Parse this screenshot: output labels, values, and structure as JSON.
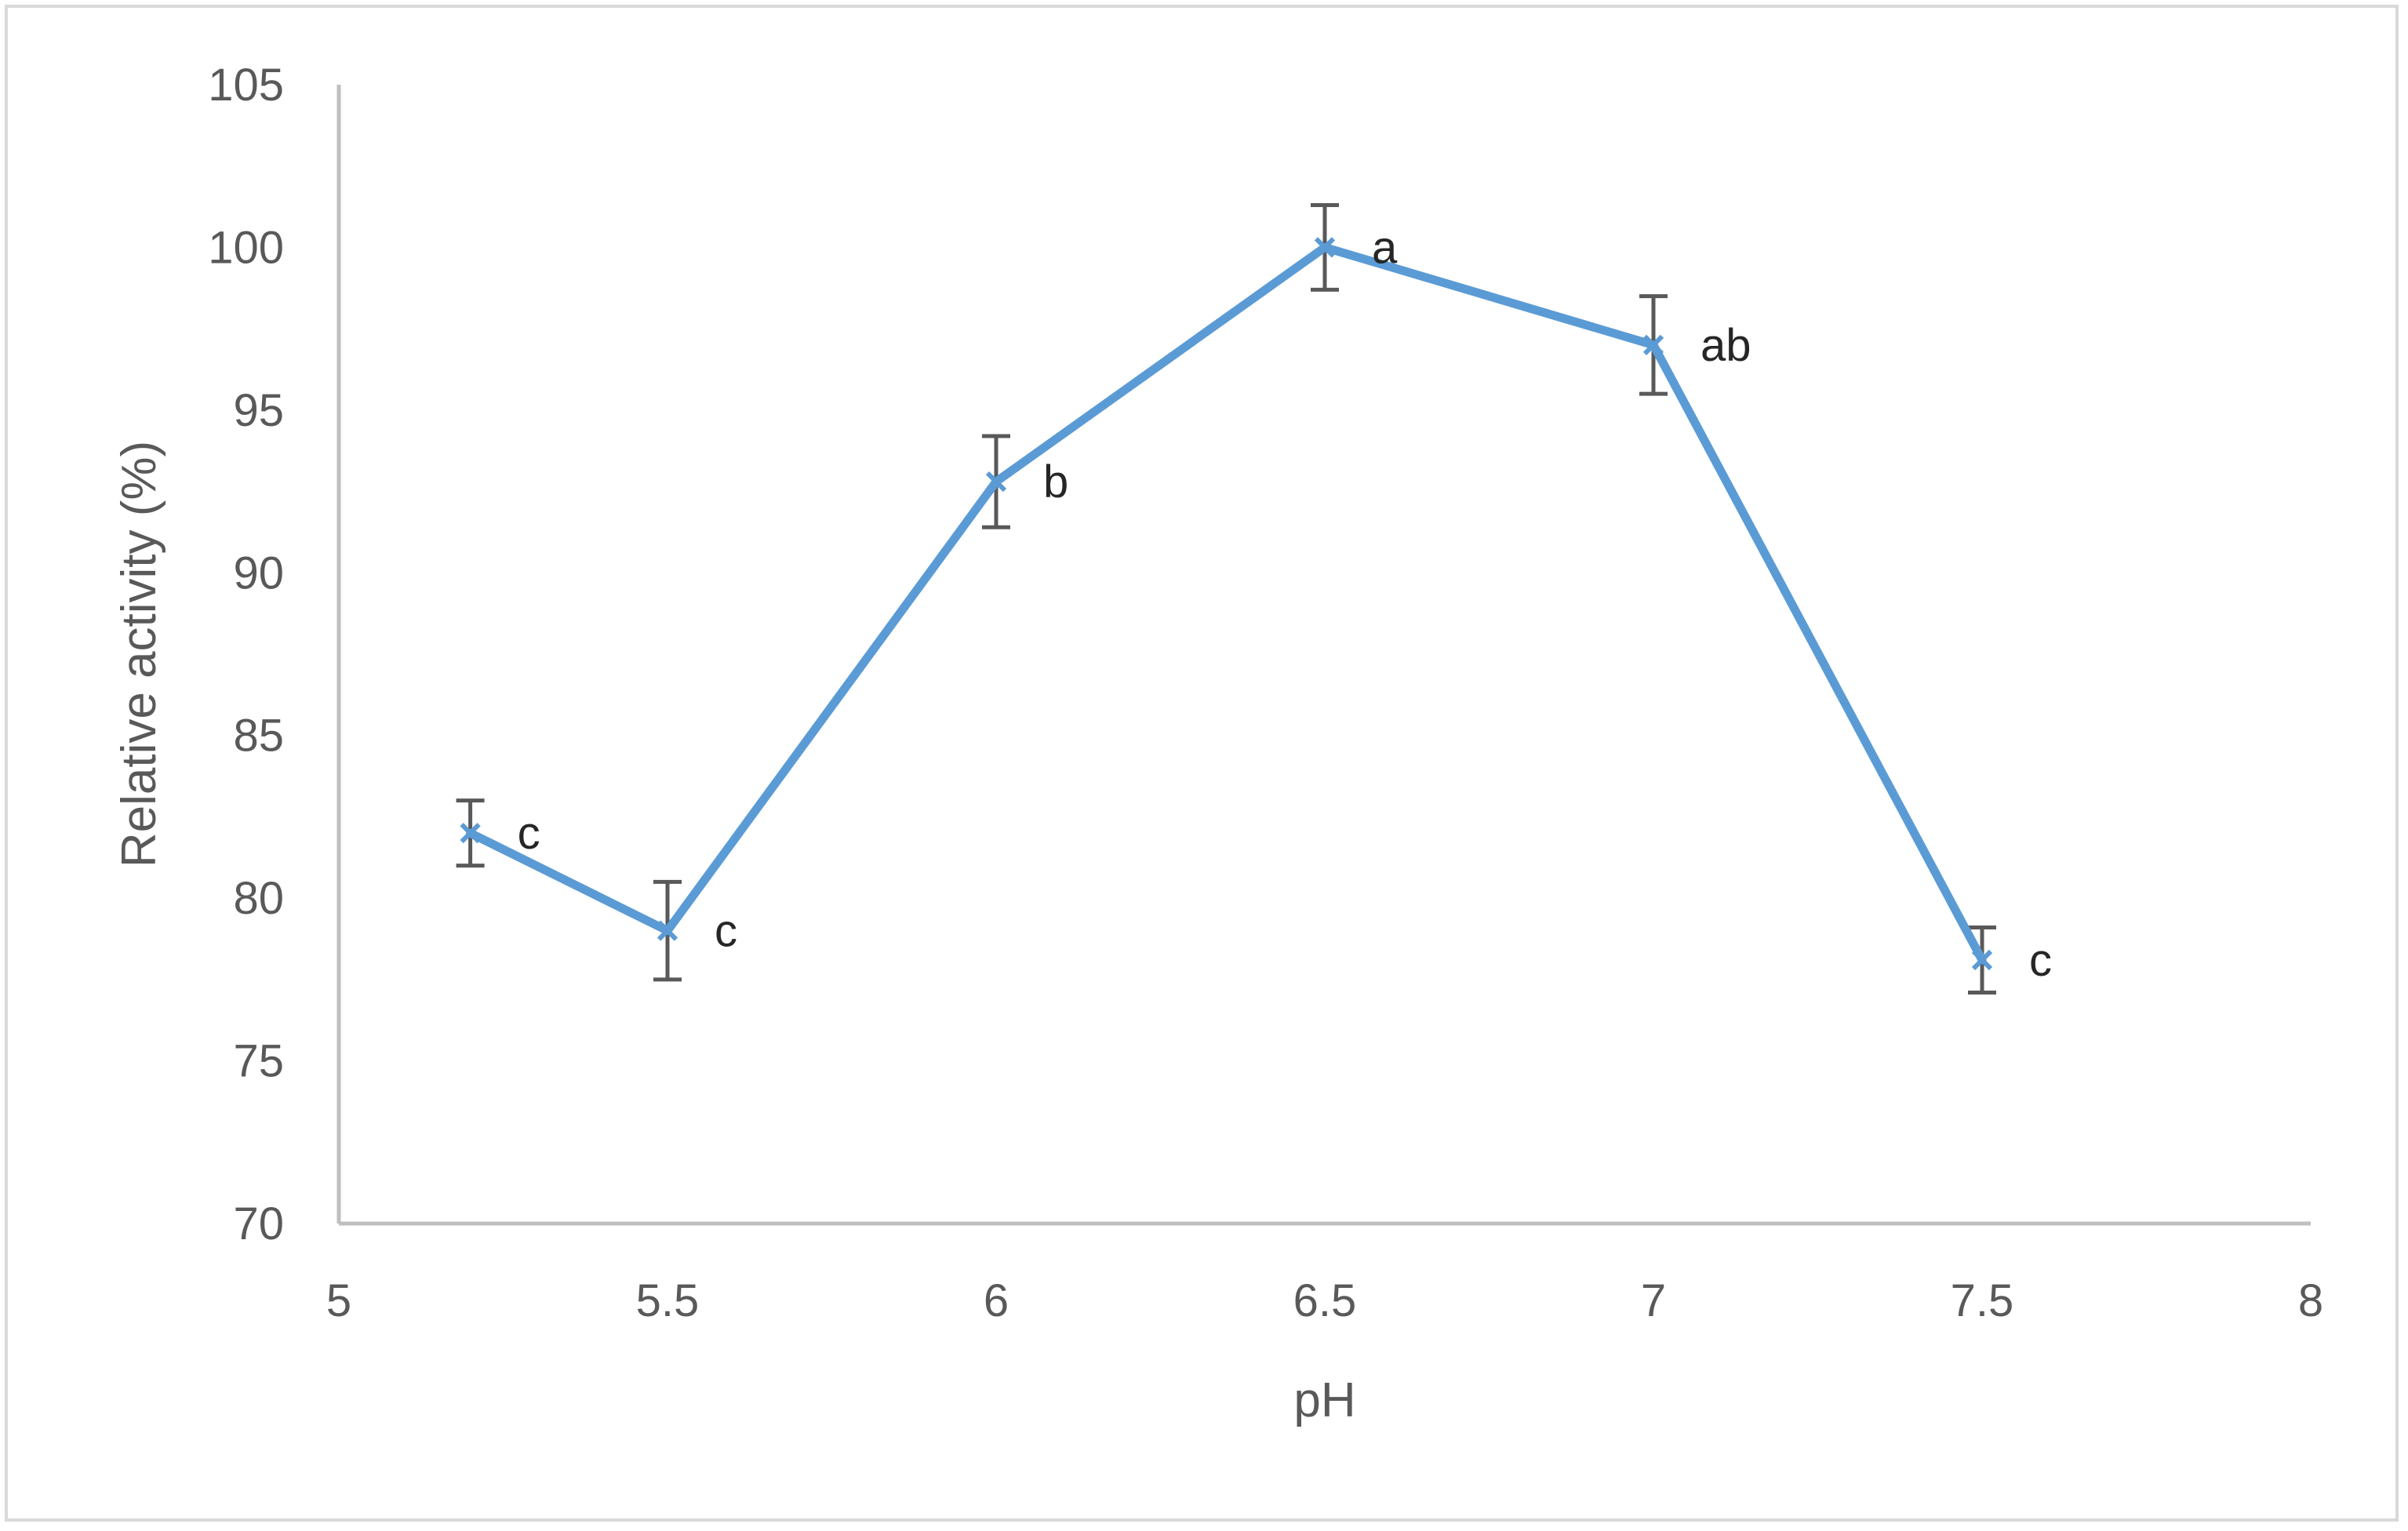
{
  "chart_data": {
    "type": "line",
    "xlabel": "pH",
    "ylabel": "Relative activity (%)",
    "xlim": [
      5,
      8
    ],
    "ylim": [
      70,
      105
    ],
    "xticks": [
      "5",
      "5.5",
      "6",
      "6.5",
      "7",
      "7.5",
      "8"
    ],
    "yticks": [
      "70",
      "75",
      "80",
      "85",
      "90",
      "95",
      "100",
      "105"
    ],
    "grid": false,
    "legend": "none",
    "series": [
      {
        "color": "#5b9bd5",
        "marker": "x",
        "points": [
          {
            "x": 5.2,
            "y": 82.0,
            "err": 1.0,
            "label": "c"
          },
          {
            "x": 5.5,
            "y": 79.0,
            "err": 1.5,
            "label": "c"
          },
          {
            "x": 6.0,
            "y": 92.8,
            "err": 1.4,
            "label": "b"
          },
          {
            "x": 6.5,
            "y": 100.0,
            "err": 1.3,
            "label": "a"
          },
          {
            "x": 7.0,
            "y": 97.0,
            "err": 1.5,
            "label": "ab"
          },
          {
            "x": 7.5,
            "y": 78.1,
            "err": 1.0,
            "label": "c"
          }
        ]
      }
    ]
  }
}
